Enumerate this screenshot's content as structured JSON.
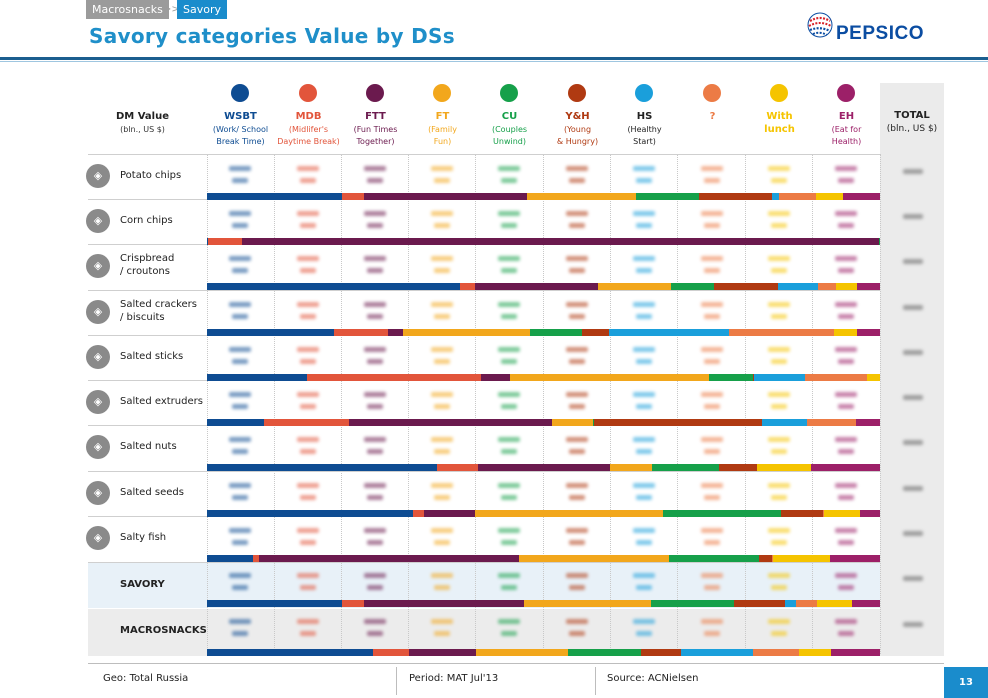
{
  "breadcrumb": {
    "level1": "Macrosnacks",
    "separator": ">>",
    "level2": "Savory"
  },
  "title": "Savory categories Value by DSs",
  "logo": {
    "text": "PEPSICO"
  },
  "dm_header": {
    "title": "DM Value",
    "unit": "(bln., US $)"
  },
  "total_header": {
    "title": "TOTAL",
    "unit": "(bln., US $)"
  },
  "columns": [
    {
      "abbr": "WSBT",
      "desc1": "(Work/ School",
      "desc2": "Break Time)",
      "color": "#0e4c92"
    },
    {
      "abbr": "MDB",
      "desc1": "(Midlifer's",
      "desc2": "Daytime Break)",
      "color": "#e2553b"
    },
    {
      "abbr": "FTT",
      "desc1": "(Fun Times",
      "desc2": "Together)",
      "color": "#6b1a4e"
    },
    {
      "abbr": "FT",
      "desc1": "(Family",
      "desc2": "Fun)",
      "color": "#f2a71c"
    },
    {
      "abbr": "CU",
      "desc1": "(Couples",
      "desc2": "Unwind)",
      "color": "#16a04a"
    },
    {
      "abbr": "Y&H",
      "desc1": "(Young",
      "desc2": "& Hungry)",
      "color": "#b03a12"
    },
    {
      "abbr": "HS",
      "desc1": "(Healthy",
      "desc2": "Start)",
      "color": "#1a9fdb"
    },
    {
      "abbr": "?",
      "desc1": "",
      "desc2": "",
      "color": "#ec7b45"
    },
    {
      "abbr": "With",
      "desc1": "lunch",
      "desc2": "",
      "color": "#f5c400"
    },
    {
      "abbr": "EH",
      "desc1": "(Eat for",
      "desc2": "Health)",
      "color": "#9c2068"
    }
  ],
  "rows": [
    {
      "label1": "Potato chips",
      "label2": "",
      "icon": "potato-chips-icon",
      "bar": [
        20.2,
        3.2,
        24.4,
        16.4,
        9.4,
        10.8,
        1.1,
        5.6,
        4.0,
        5.5
      ]
    },
    {
      "label1": "Corn chips",
      "label2": "",
      "icon": "corn-chips-icon",
      "bar": [
        0.2,
        5.0,
        94.6,
        0.1,
        0.1,
        0.0,
        0.0,
        0.0,
        0.0,
        0.0
      ]
    },
    {
      "label1": "Crispbread",
      "label2": "/ croutons",
      "icon": "crispbread-icon",
      "bar": [
        37.4,
        2.3,
        18.1,
        10.9,
        6.4,
        9.4,
        6.0,
        2.6,
        3.1,
        3.4
      ]
    },
    {
      "label1": "Salted crackers",
      "label2": "/ biscuits",
      "icon": "crackers-icon",
      "bar": [
        18.9,
        8.0,
        2.2,
        18.9,
        7.8,
        3.9,
        17.9,
        15.6,
        3.4,
        3.4
      ]
    },
    {
      "label1": "Salted sticks",
      "label2": "",
      "icon": "salted-sticks-icon",
      "bar": [
        14.8,
        26.0,
        4.3,
        29.5,
        6.6,
        0.1,
        7.6,
        9.2,
        2.0,
        0.0
      ]
    },
    {
      "label1": "Salted extruders",
      "label2": "",
      "icon": "salted-extruders-icon",
      "bar": [
        8.5,
        12.6,
        30.2,
        6.1,
        0.1,
        25.0,
        6.7,
        7.3,
        0.0,
        3.5
      ]
    },
    {
      "label1": "Salted nuts",
      "label2": "",
      "icon": "salted-nuts-icon",
      "bar": [
        34.2,
        6.1,
        19.6,
        6.2,
        10.0,
        5.6,
        0.0,
        0.0,
        8.0,
        10.3
      ]
    },
    {
      "label1": "Salted seeds",
      "label2": "",
      "icon": "salted-seeds-icon",
      "bar": [
        30.6,
        1.6,
        7.6,
        28.0,
        17.5,
        6.2,
        0.1,
        0.1,
        5.3,
        3.0
      ]
    },
    {
      "label1": "Salty fish",
      "label2": "",
      "icon": "salty-fish-icon",
      "bar": [
        6.8,
        1.0,
        38.5,
        22.3,
        13.4,
        1.9,
        0.1,
        0.1,
        8.5,
        7.4
      ]
    }
  ],
  "summary_rows": [
    {
      "label": "SAVORY",
      "bar": [
        20.1,
        3.2,
        23.8,
        18.9,
        12.3,
        7.6,
        1.6,
        3.1,
        5.2,
        4.2
      ]
    },
    {
      "label": "MACROSNACKS",
      "bar": [
        24.7,
        5.3,
        9.9,
        13.7,
        10.9,
        5.9,
        10.8,
        6.8,
        4.7,
        7.3
      ]
    }
  ],
  "footer": {
    "geo": "Geo: Total Russia",
    "period": "Period: MAT Jul'13",
    "source": "Source: ACNielsen",
    "page": "13"
  }
}
